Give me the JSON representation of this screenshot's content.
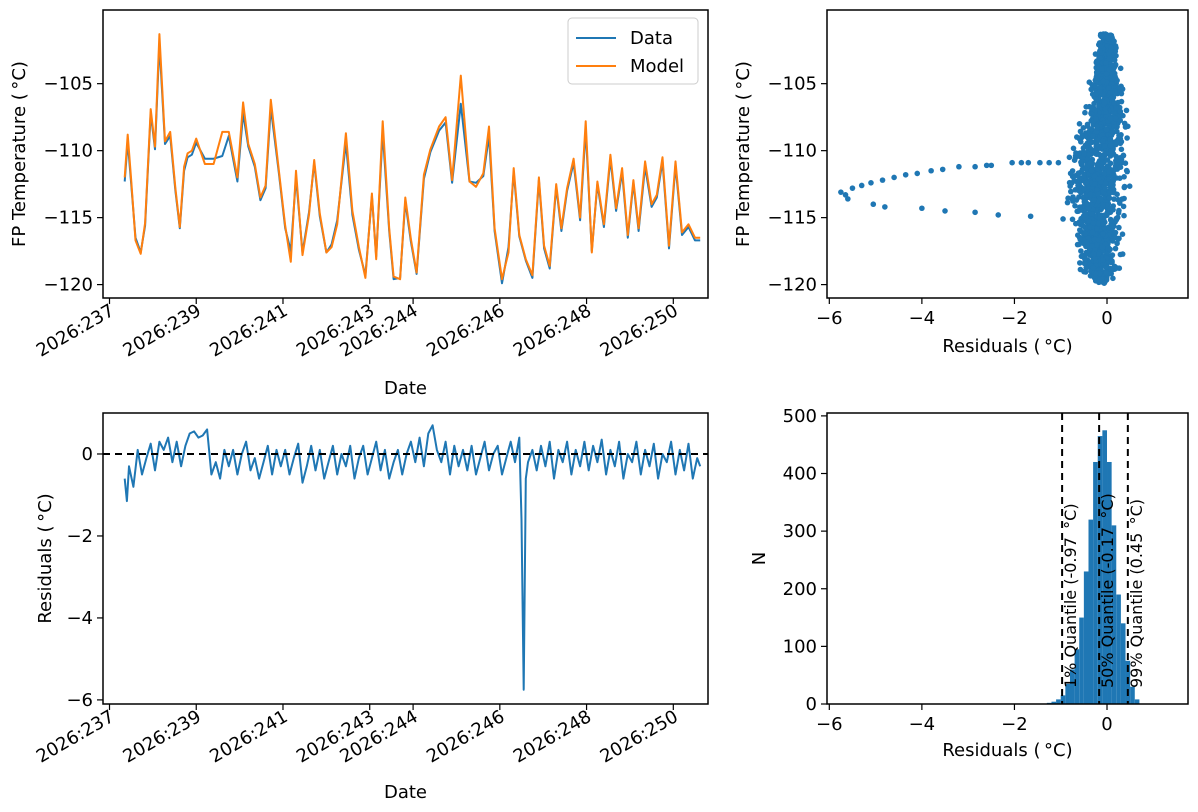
{
  "colors": {
    "data": "#1f77b4",
    "model": "#ff7f0e",
    "axis": "#000000",
    "dashed": "#000000"
  },
  "chart_data": [
    {
      "id": "temp_vs_date",
      "type": "line",
      "xlabel": "Date",
      "ylabel": "FP Temperature ($^\\circ$C)",
      "ylabel_display": "FP Temperature ( °C)",
      "xlim_days": [
        236.85,
        250.8
      ],
      "ylim": [
        -121,
        -99.5
      ],
      "yticks": [
        -120,
        -115,
        -110,
        -105
      ],
      "xticks": [
        "2026:237",
        "2026:239",
        "2026:241",
        "2026:243",
        "2026:244",
        "2026:246",
        "2026:248",
        "2026:250"
      ],
      "xtick_days": [
        237,
        239,
        241,
        243,
        244,
        246,
        248,
        250
      ],
      "legend": {
        "placement": "top-right",
        "entries": [
          "Data",
          "Model"
        ]
      },
      "series": [
        {
          "name": "Data",
          "x_days": [
            237.35,
            237.42,
            237.5,
            237.6,
            237.72,
            237.82,
            237.95,
            238.05,
            238.15,
            238.28,
            238.4,
            238.52,
            238.62,
            238.72,
            238.8,
            238.9,
            239.0,
            239.2,
            239.4,
            239.6,
            239.75,
            239.95,
            240.08,
            240.2,
            240.35,
            240.48,
            240.6,
            240.72,
            240.9,
            241.05,
            241.18,
            241.3,
            241.45,
            241.6,
            241.72,
            241.85,
            242.0,
            242.12,
            242.25,
            242.45,
            242.6,
            242.75,
            242.9,
            243.05,
            243.15,
            243.3,
            243.45,
            243.55,
            243.7,
            243.82,
            243.95,
            244.08,
            244.25,
            244.4,
            244.6,
            244.75,
            244.9,
            245.1,
            245.3,
            245.45,
            245.62,
            245.75,
            245.88,
            246.05,
            246.2,
            246.32,
            246.45,
            246.6,
            246.75,
            246.9,
            247.02,
            247.15,
            247.3,
            247.42,
            247.55,
            247.7,
            247.85,
            247.98,
            248.12,
            248.25,
            248.4,
            248.55,
            248.68,
            248.82,
            248.95,
            249.08,
            249.2,
            249.35,
            249.5,
            249.62,
            249.75,
            249.9,
            250.05,
            250.2,
            250.35,
            250.5,
            250.62
          ],
          "y": [
            -112.3,
            -109.3,
            -112.5,
            -116.5,
            -117.6,
            -115.6,
            -107.2,
            -109.9,
            -102.0,
            -109.5,
            -108.9,
            -113.0,
            -115.8,
            -111.5,
            -110.5,
            -110.3,
            -109.4,
            -110.6,
            -110.6,
            -110.4,
            -108.9,
            -112.3,
            -107.2,
            -109.7,
            -111.2,
            -113.7,
            -112.8,
            -106.8,
            -111.5,
            -115.8,
            -117.5,
            -112.0,
            -117.6,
            -114.6,
            -110.9,
            -114.9,
            -117.6,
            -117.0,
            -115.2,
            -109.4,
            -114.8,
            -117.4,
            -119.3,
            -113.4,
            -117.9,
            -108.6,
            -116.0,
            -119.6,
            -119.5,
            -113.8,
            -116.8,
            -119.2,
            -112.1,
            -110.1,
            -108.5,
            -107.9,
            -112.4,
            -106.5,
            -112.3,
            -112.4,
            -111.9,
            -108.9,
            -116.0,
            -119.9,
            -117.2,
            -111.6,
            -116.4,
            -118.2,
            -119.5,
            -112.2,
            -117.3,
            -118.8,
            -112.7,
            -116.0,
            -113.0,
            -110.9,
            -115.2,
            -108.4,
            -117.5,
            -112.5,
            -115.7,
            -110.6,
            -114.5,
            -111.6,
            -116.5,
            -112.4,
            -116.0,
            -111.2,
            -114.2,
            -113.5,
            -110.8,
            -117.3,
            -111.1,
            -116.3,
            -115.7,
            -116.7,
            -116.7
          ]
        },
        {
          "name": "Model",
          "x_days": [
            237.35,
            237.42,
            237.5,
            237.6,
            237.72,
            237.82,
            237.95,
            238.05,
            238.15,
            238.28,
            238.4,
            238.52,
            238.62,
            238.72,
            238.8,
            238.9,
            239.0,
            239.2,
            239.4,
            239.6,
            239.75,
            239.95,
            240.08,
            240.2,
            240.35,
            240.48,
            240.6,
            240.72,
            240.9,
            241.05,
            241.18,
            241.3,
            241.45,
            241.6,
            241.72,
            241.85,
            242.0,
            242.12,
            242.25,
            242.45,
            242.6,
            242.75,
            242.9,
            243.05,
            243.15,
            243.3,
            243.45,
            243.55,
            243.7,
            243.82,
            243.95,
            244.08,
            244.25,
            244.4,
            244.6,
            244.75,
            244.9,
            245.1,
            245.3,
            245.45,
            245.62,
            245.75,
            245.88,
            246.05,
            246.2,
            246.32,
            246.45,
            246.6,
            246.75,
            246.9,
            247.02,
            247.15,
            247.3,
            247.42,
            247.55,
            247.7,
            247.85,
            247.98,
            248.12,
            248.25,
            248.4,
            248.55,
            248.68,
            248.82,
            248.95,
            249.08,
            249.2,
            249.35,
            249.5,
            249.62,
            249.75,
            249.9,
            250.05,
            250.2,
            250.35,
            250.5,
            250.62
          ],
          "y": [
            -112.0,
            -108.8,
            -112.2,
            -116.7,
            -117.7,
            -115.4,
            -106.9,
            -109.7,
            -101.3,
            -109.3,
            -108.6,
            -112.8,
            -115.7,
            -111.2,
            -110.2,
            -110.0,
            -109.1,
            -111.0,
            -111.0,
            -108.6,
            -108.6,
            -112.0,
            -106.4,
            -109.5,
            -111.0,
            -113.5,
            -112.6,
            -106.2,
            -111.3,
            -115.6,
            -118.3,
            -111.5,
            -117.8,
            -114.8,
            -110.7,
            -114.7,
            -117.6,
            -117.2,
            -115.5,
            -108.7,
            -114.5,
            -117.2,
            -119.5,
            -113.2,
            -118.1,
            -107.8,
            -115.8,
            -119.4,
            -119.6,
            -113.5,
            -116.6,
            -119.1,
            -111.8,
            -109.9,
            -108.2,
            -107.5,
            -112.2,
            -104.4,
            -112.3,
            -112.7,
            -111.7,
            -108.2,
            -115.8,
            -119.6,
            -117.6,
            -111.3,
            -116.3,
            -118.1,
            -119.3,
            -112.0,
            -117.1,
            -118.6,
            -112.5,
            -115.8,
            -112.8,
            -110.6,
            -115.0,
            -107.8,
            -117.6,
            -112.3,
            -115.5,
            -110.3,
            -114.3,
            -111.3,
            -116.3,
            -112.2,
            -115.8,
            -110.8,
            -114.0,
            -113.3,
            -110.5,
            -117.1,
            -110.8,
            -116.1,
            -115.5,
            -116.5,
            -116.5
          ]
        }
      ]
    },
    {
      "id": "temp_vs_residuals",
      "type": "scatter",
      "xlabel": "Residuals ($^\\circ$C)",
      "xlabel_display": "Residuals ( °C)",
      "ylabel": "FP Temperature ($^\\circ$C)",
      "ylabel_display": "FP Temperature ( °C)",
      "xlim": [
        -6.05,
        1.75
      ],
      "ylim": [
        -121,
        -99.5
      ],
      "xticks": [
        -6,
        -4,
        -2,
        0
      ],
      "yticks": [
        -120,
        -115,
        -110,
        -105
      ],
      "outlier_points": [
        [
          -5.75,
          -113.1
        ],
        [
          -5.65,
          -113.3
        ],
        [
          -5.6,
          -113.6
        ],
        [
          -5.5,
          -112.8
        ],
        [
          -5.3,
          -112.6
        ],
        [
          -5.1,
          -112.4
        ],
        [
          -5.05,
          -114.0
        ],
        [
          -4.85,
          -112.2
        ],
        [
          -4.8,
          -114.2
        ],
        [
          -4.6,
          -112.0
        ],
        [
          -4.35,
          -111.8
        ],
        [
          -4.1,
          -111.7
        ],
        [
          -4.0,
          -114.3
        ],
        [
          -3.8,
          -111.5
        ],
        [
          -3.55,
          -111.4
        ],
        [
          -3.5,
          -114.5
        ],
        [
          -3.2,
          -111.2
        ],
        [
          -2.85,
          -111.2
        ],
        [
          -2.85,
          -114.6
        ],
        [
          -2.6,
          -111.1
        ],
        [
          -2.5,
          -111.1
        ],
        [
          -2.35,
          -114.8
        ],
        [
          -2.05,
          -110.9
        ],
        [
          -1.85,
          -110.9
        ],
        [
          -1.7,
          -110.9
        ],
        [
          -1.65,
          -114.9
        ],
        [
          -1.45,
          -110.9
        ],
        [
          -1.25,
          -110.9
        ],
        [
          -1.05,
          -110.9
        ],
        [
          -0.95,
          -115.1
        ]
      ],
      "cluster_envelope": {
        "y": [
          -101.3,
          -103,
          -105,
          -107,
          -109,
          -111,
          -113,
          -115,
          -117,
          -119,
          -119.9
        ],
        "x_min": [
          -0.2,
          -0.3,
          -0.45,
          -0.6,
          -0.8,
          -1.0,
          -1.0,
          -0.95,
          -0.85,
          -0.6,
          -0.3
        ],
        "x_max": [
          0.15,
          0.3,
          0.4,
          0.5,
          0.55,
          0.6,
          0.55,
          0.5,
          0.45,
          0.35,
          0.1
        ]
      }
    },
    {
      "id": "residuals_vs_date",
      "type": "line",
      "xlabel": "Date",
      "ylabel": "Residuals ($^\\circ$C)",
      "ylabel_display": "Residuals ( °C)",
      "xlim_days": [
        236.85,
        250.8
      ],
      "ylim": [
        -6.1,
        1.0
      ],
      "yticks": [
        -6,
        -4,
        -2,
        0
      ],
      "xticks": [
        "2026:237",
        "2026:239",
        "2026:241",
        "2026:243",
        "2026:244",
        "2026:246",
        "2026:248",
        "2026:250"
      ],
      "xtick_days": [
        237,
        239,
        241,
        243,
        244,
        246,
        248,
        250
      ],
      "zero_line": 0,
      "series": [
        {
          "name": "Residuals",
          "x_days": [
            237.35,
            237.4,
            237.45,
            237.55,
            237.65,
            237.75,
            237.85,
            237.95,
            238.05,
            238.15,
            238.25,
            238.35,
            238.45,
            238.55,
            238.65,
            238.75,
            238.85,
            238.95,
            239.05,
            239.15,
            239.25,
            239.35,
            239.45,
            239.55,
            239.65,
            239.75,
            239.85,
            239.95,
            240.05,
            240.15,
            240.25,
            240.35,
            240.45,
            240.55,
            240.65,
            240.75,
            240.85,
            240.95,
            241.05,
            241.15,
            241.25,
            241.35,
            241.45,
            241.55,
            241.65,
            241.75,
            241.85,
            241.95,
            242.05,
            242.15,
            242.25,
            242.35,
            242.45,
            242.55,
            242.65,
            242.75,
            242.85,
            242.95,
            243.05,
            243.15,
            243.25,
            243.35,
            243.45,
            243.55,
            243.65,
            243.75,
            243.85,
            243.95,
            244.05,
            244.15,
            244.25,
            244.35,
            244.45,
            244.55,
            244.65,
            244.75,
            244.85,
            244.95,
            245.05,
            245.15,
            245.25,
            245.35,
            245.45,
            245.55,
            245.65,
            245.75,
            245.85,
            245.95,
            246.05,
            246.15,
            246.25,
            246.35,
            246.45,
            246.5,
            246.55,
            246.6,
            246.65,
            246.75,
            246.85,
            246.95,
            247.05,
            247.15,
            247.25,
            247.35,
            247.45,
            247.55,
            247.65,
            247.75,
            247.85,
            247.95,
            248.05,
            248.15,
            248.25,
            248.35,
            248.45,
            248.55,
            248.65,
            248.75,
            248.85,
            248.95,
            249.05,
            249.15,
            249.25,
            249.35,
            249.45,
            249.55,
            249.65,
            249.75,
            249.85,
            249.95,
            250.05,
            250.15,
            250.25,
            250.35,
            250.45,
            250.55,
            250.62
          ],
          "y": [
            -0.6,
            -1.15,
            -0.3,
            -0.8,
            0.1,
            -0.5,
            -0.1,
            0.25,
            -0.4,
            0.3,
            0.1,
            0.4,
            -0.2,
            0.3,
            -0.3,
            0.2,
            0.5,
            0.55,
            0.4,
            0.45,
            0.6,
            -0.5,
            -0.2,
            -0.6,
            0.1,
            -0.3,
            0.1,
            -0.5,
            0.0,
            0.3,
            -0.4,
            -0.1,
            -0.6,
            -0.2,
            0.2,
            -0.5,
            0.1,
            -0.3,
            0.1,
            -0.5,
            -0.1,
            0.25,
            -0.7,
            -0.3,
            0.2,
            -0.4,
            0.1,
            -0.6,
            -0.2,
            0.2,
            -0.5,
            0.0,
            -0.3,
            0.2,
            -0.6,
            -0.1,
            0.2,
            -0.5,
            -0.1,
            0.3,
            -0.4,
            0.1,
            -0.6,
            -0.2,
            0.1,
            -0.5,
            0.0,
            0.3,
            -0.2,
            0.4,
            -0.3,
            0.5,
            0.7,
            0.1,
            -0.2,
            0.3,
            -0.5,
            0.2,
            -0.3,
            0.1,
            -0.4,
            0.2,
            -0.5,
            -0.1,
            0.3,
            -0.4,
            0.0,
            0.2,
            -0.5,
            -0.1,
            0.3,
            -0.2,
            0.4,
            -1.6,
            -5.75,
            -0.6,
            -0.2,
            0.1,
            -0.4,
            0.2,
            -0.3,
            0.3,
            -0.6,
            0.1,
            -0.2,
            0.3,
            -0.5,
            0.1,
            -0.3,
            0.3,
            -0.4,
            0.2,
            -0.2,
            0.35,
            -0.5,
            0.1,
            -0.3,
            0.3,
            -0.6,
            0.0,
            -0.2,
            0.3,
            -0.5,
            0.1,
            -0.3,
            0.25,
            -0.6,
            0.0,
            -0.2,
            0.3,
            -0.5,
            0.1,
            -0.4,
            0.25,
            -0.6,
            -0.1,
            -0.3
          ]
        }
      ]
    },
    {
      "id": "residual_histogram",
      "type": "bar",
      "xlabel": "Residuals ($^\\circ$C)",
      "xlabel_display": "Residuals ( °C)",
      "ylabel": "N",
      "xlim": [
        -6.05,
        1.75
      ],
      "ylim": [
        0,
        505
      ],
      "xticks": [
        -6,
        -4,
        -2,
        0
      ],
      "yticks": [
        0,
        100,
        200,
        300,
        400,
        500
      ],
      "bin_width": 0.1,
      "bins": [
        [
          -1.3,
          2
        ],
        [
          -1.2,
          4
        ],
        [
          -1.1,
          8
        ],
        [
          -1.0,
          15
        ],
        [
          -0.9,
          35
        ],
        [
          -0.8,
          60
        ],
        [
          -0.7,
          95
        ],
        [
          -0.6,
          150
        ],
        [
          -0.5,
          230
        ],
        [
          -0.4,
          320
        ],
        [
          -0.3,
          420
        ],
        [
          -0.2,
          465
        ],
        [
          -0.1,
          475
        ],
        [
          0.0,
          420
        ],
        [
          0.1,
          310
        ],
        [
          0.2,
          190
        ],
        [
          0.3,
          140
        ],
        [
          0.4,
          75
        ],
        [
          0.5,
          30
        ],
        [
          0.6,
          8
        ]
      ],
      "quantile_lines": [
        {
          "value": -0.97,
          "label": "1% Quantile (-0.97 $^\\circ$C)"
        },
        {
          "value": -0.17,
          "label": "50% Quantile (-0.17 $^\\circ$C)"
        },
        {
          "value": 0.45,
          "label": "99% Quantile (0.45 $^\\circ$C)"
        }
      ]
    }
  ]
}
